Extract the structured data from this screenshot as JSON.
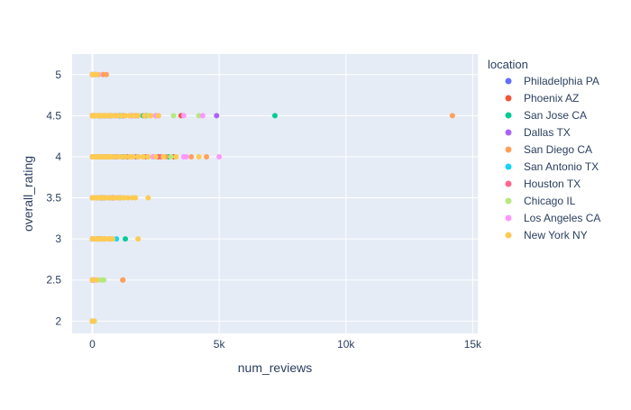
{
  "chart_data": {
    "type": "scatter",
    "xlabel": "num_reviews",
    "ylabel": "overall_rating",
    "xlim": [
      -800,
      15200
    ],
    "ylim": [
      1.85,
      5.25
    ],
    "xticks": [
      0,
      5000,
      10000,
      15000
    ],
    "xtick_labels": [
      "0",
      "5k",
      "10k",
      "15k"
    ],
    "yticks": [
      2,
      2.5,
      3,
      3.5,
      4,
      4.5,
      5
    ],
    "ytick_labels": [
      "2",
      "2.5",
      "3",
      "3.5",
      "4",
      "4.5",
      "5"
    ],
    "grid": true,
    "legend": {
      "title": "location",
      "placement": "right"
    },
    "series": [
      {
        "name": "Philadelphia PA",
        "color": "#636efa",
        "points": [
          [
            0,
            4.5
          ],
          [
            90,
            4.5
          ],
          [
            260,
            4.5
          ],
          [
            520,
            4.5
          ],
          [
            760,
            4.5
          ],
          [
            1050,
            4.5
          ],
          [
            1200,
            4.5
          ],
          [
            1600,
            4.5
          ],
          [
            0,
            4
          ],
          [
            120,
            4
          ],
          [
            340,
            4
          ],
          [
            610,
            4
          ],
          [
            900,
            4
          ],
          [
            1150,
            4
          ],
          [
            1380,
            4
          ],
          [
            0,
            3.5
          ],
          [
            180,
            3.5
          ],
          [
            420,
            3.5
          ],
          [
            0,
            3
          ],
          [
            0,
            5
          ],
          [
            100,
            5
          ],
          [
            0,
            2.5
          ]
        ]
      },
      {
        "name": "Phoenix AZ",
        "color": "#ef553b",
        "points": [
          [
            0,
            4.5
          ],
          [
            300,
            4.5
          ],
          [
            700,
            4.5
          ],
          [
            1100,
            4.5
          ],
          [
            1500,
            4.5
          ],
          [
            1800,
            4.5
          ],
          [
            2100,
            4.5
          ],
          [
            3500,
            4.5
          ],
          [
            0,
            4
          ],
          [
            200,
            4
          ],
          [
            600,
            4
          ],
          [
            1000,
            4
          ],
          [
            1400,
            4
          ],
          [
            1800,
            4
          ],
          [
            2600,
            4
          ],
          [
            3200,
            4
          ],
          [
            0,
            3.5
          ],
          [
            350,
            3.5
          ],
          [
            800,
            3.5
          ],
          [
            0,
            3
          ],
          [
            250,
            3
          ],
          [
            0,
            2.5
          ],
          [
            1200,
            2.5
          ],
          [
            0,
            2
          ]
        ]
      },
      {
        "name": "San Jose CA",
        "color": "#00cc96",
        "points": [
          [
            0,
            4.5
          ],
          [
            250,
            4.5
          ],
          [
            650,
            4.5
          ],
          [
            1200,
            4.5
          ],
          [
            2000,
            4.5
          ],
          [
            7200,
            4.5
          ],
          [
            0,
            4
          ],
          [
            300,
            4
          ],
          [
            800,
            4
          ],
          [
            1300,
            4
          ],
          [
            3000,
            4
          ],
          [
            0,
            3.5
          ],
          [
            400,
            3.5
          ],
          [
            0,
            3
          ],
          [
            500,
            3
          ],
          [
            1300,
            3
          ],
          [
            0,
            2.5
          ],
          [
            0,
            2
          ]
        ]
      },
      {
        "name": "Dallas TX",
        "color": "#ab63fa",
        "points": [
          [
            0,
            4.5
          ],
          [
            350,
            4.5
          ],
          [
            900,
            4.5
          ],
          [
            1500,
            4.5
          ],
          [
            2500,
            4.5
          ],
          [
            4900,
            4.5
          ],
          [
            0,
            4
          ],
          [
            400,
            4
          ],
          [
            1000,
            4
          ],
          [
            1700,
            4
          ],
          [
            2400,
            4
          ],
          [
            0,
            3.5
          ],
          [
            300,
            3.5
          ],
          [
            700,
            3.5
          ],
          [
            0,
            3
          ],
          [
            200,
            3
          ],
          [
            0,
            2.5
          ],
          [
            60,
            2.5
          ]
        ]
      },
      {
        "name": "San Diego CA",
        "color": "#ffa15a",
        "points": [
          [
            0,
            4.5
          ],
          [
            400,
            4.5
          ],
          [
            1000,
            4.5
          ],
          [
            1700,
            4.5
          ],
          [
            2300,
            4.5
          ],
          [
            14200,
            4.5
          ],
          [
            0,
            4
          ],
          [
            500,
            4
          ],
          [
            1200,
            4
          ],
          [
            2000,
            4
          ],
          [
            2900,
            4
          ],
          [
            3900,
            4
          ],
          [
            4500,
            4
          ],
          [
            0,
            3.5
          ],
          [
            500,
            3.5
          ],
          [
            1100,
            3.5
          ],
          [
            0,
            3
          ],
          [
            350,
            3
          ],
          [
            700,
            3
          ],
          [
            0,
            5
          ],
          [
            420,
            5
          ],
          [
            550,
            5
          ],
          [
            0,
            2.5
          ],
          [
            1200,
            2.5
          ]
        ]
      },
      {
        "name": "San Antonio TX",
        "color": "#19d3f3",
        "points": [
          [
            0,
            4.5
          ],
          [
            450,
            4.5
          ],
          [
            1100,
            4.5
          ],
          [
            0,
            4
          ],
          [
            500,
            4
          ],
          [
            1200,
            4
          ],
          [
            0,
            3.5
          ],
          [
            450,
            3.5
          ],
          [
            0,
            3
          ],
          [
            950,
            3
          ],
          [
            0,
            2.5
          ],
          [
            0,
            2
          ]
        ]
      },
      {
        "name": "Houston TX",
        "color": "#ff6692",
        "points": [
          [
            0,
            4.5
          ],
          [
            500,
            4.5
          ],
          [
            1200,
            4.5
          ],
          [
            1800,
            4.5
          ],
          [
            2600,
            4.5
          ],
          [
            0,
            4
          ],
          [
            600,
            4
          ],
          [
            1300,
            4
          ],
          [
            2100,
            4
          ],
          [
            2700,
            4
          ],
          [
            0,
            3.5
          ],
          [
            500,
            3.5
          ],
          [
            0,
            3
          ],
          [
            300,
            3
          ],
          [
            0,
            2.5
          ],
          [
            0,
            5
          ]
        ]
      },
      {
        "name": "Chicago IL",
        "color": "#b6e880",
        "points": [
          [
            0,
            4.5
          ],
          [
            550,
            4.5
          ],
          [
            1300,
            4.5
          ],
          [
            2200,
            4.5
          ],
          [
            3200,
            4.5
          ],
          [
            4200,
            4.5
          ],
          [
            0,
            4
          ],
          [
            700,
            4
          ],
          [
            1500,
            4
          ],
          [
            2200,
            4
          ],
          [
            3100,
            4
          ],
          [
            0,
            3.5
          ],
          [
            600,
            3.5
          ],
          [
            1200,
            3.5
          ],
          [
            0,
            3
          ],
          [
            400,
            3
          ],
          [
            0,
            2.5
          ],
          [
            200,
            2.5
          ],
          [
            350,
            2.5
          ],
          [
            450,
            2.5
          ],
          [
            0,
            2
          ],
          [
            80,
            2
          ]
        ]
      },
      {
        "name": "Los Angeles CA",
        "color": "#ff97ff",
        "points": [
          [
            0,
            4.5
          ],
          [
            600,
            4.5
          ],
          [
            1500,
            4.5
          ],
          [
            2500,
            4.5
          ],
          [
            3600,
            4.5
          ],
          [
            4350,
            4.5
          ],
          [
            0,
            4
          ],
          [
            800,
            4
          ],
          [
            1600,
            4
          ],
          [
            2400,
            4
          ],
          [
            3600,
            4
          ],
          [
            3700,
            4
          ],
          [
            5000,
            4
          ],
          [
            0,
            3.5
          ],
          [
            700,
            3.5
          ],
          [
            1000,
            3.5
          ],
          [
            1400,
            3.5
          ],
          [
            0,
            3
          ],
          [
            500,
            3
          ],
          [
            0,
            5
          ],
          [
            150,
            5
          ],
          [
            250,
            5
          ],
          [
            0,
            2.5
          ],
          [
            100,
            2.5
          ]
        ]
      },
      {
        "name": "New York NY",
        "color": "#fecb52",
        "points": [
          [
            0,
            4.5
          ],
          [
            40,
            4.5
          ],
          [
            90,
            4.5
          ],
          [
            140,
            4.5
          ],
          [
            200,
            4.5
          ],
          [
            260,
            4.5
          ],
          [
            330,
            4.5
          ],
          [
            400,
            4.5
          ],
          [
            480,
            4.5
          ],
          [
            560,
            4.5
          ],
          [
            650,
            4.5
          ],
          [
            750,
            4.5
          ],
          [
            870,
            4.5
          ],
          [
            1000,
            4.5
          ],
          [
            1150,
            4.5
          ],
          [
            1300,
            4.5
          ],
          [
            1450,
            4.5
          ],
          [
            1620,
            4.5
          ],
          [
            1800,
            4.5
          ],
          [
            2050,
            4.5
          ],
          [
            2300,
            4.5
          ],
          [
            2600,
            4.5
          ],
          [
            0,
            4
          ],
          [
            40,
            4
          ],
          [
            90,
            4
          ],
          [
            140,
            4
          ],
          [
            200,
            4
          ],
          [
            260,
            4
          ],
          [
            330,
            4
          ],
          [
            400,
            4
          ],
          [
            480,
            4
          ],
          [
            560,
            4
          ],
          [
            650,
            4
          ],
          [
            750,
            4
          ],
          [
            870,
            4
          ],
          [
            1000,
            4
          ],
          [
            1150,
            4
          ],
          [
            1300,
            4
          ],
          [
            1450,
            4
          ],
          [
            1620,
            4
          ],
          [
            1800,
            4
          ],
          [
            2000,
            4
          ],
          [
            2200,
            4
          ],
          [
            2500,
            4
          ],
          [
            2800,
            4
          ],
          [
            3300,
            4
          ],
          [
            4200,
            4
          ],
          [
            0,
            3.5
          ],
          [
            60,
            3.5
          ],
          [
            130,
            3.5
          ],
          [
            210,
            3.5
          ],
          [
            300,
            3.5
          ],
          [
            400,
            3.5
          ],
          [
            510,
            3.5
          ],
          [
            630,
            3.5
          ],
          [
            760,
            3.5
          ],
          [
            900,
            3.5
          ],
          [
            1050,
            3.5
          ],
          [
            1250,
            3.5
          ],
          [
            1400,
            3.5
          ],
          [
            1580,
            3.5
          ],
          [
            1700,
            3.5
          ],
          [
            2200,
            3.5
          ],
          [
            0,
            3
          ],
          [
            60,
            3
          ],
          [
            130,
            3
          ],
          [
            210,
            3
          ],
          [
            300,
            3
          ],
          [
            400,
            3
          ],
          [
            510,
            3
          ],
          [
            630,
            3
          ],
          [
            800,
            3
          ],
          [
            1800,
            3
          ],
          [
            0,
            5
          ],
          [
            50,
            5
          ],
          [
            120,
            5
          ],
          [
            200,
            5
          ],
          [
            0,
            2.5
          ],
          [
            150,
            2.5
          ],
          [
            0,
            2
          ],
          [
            30,
            2
          ],
          [
            60,
            2
          ]
        ]
      }
    ]
  }
}
